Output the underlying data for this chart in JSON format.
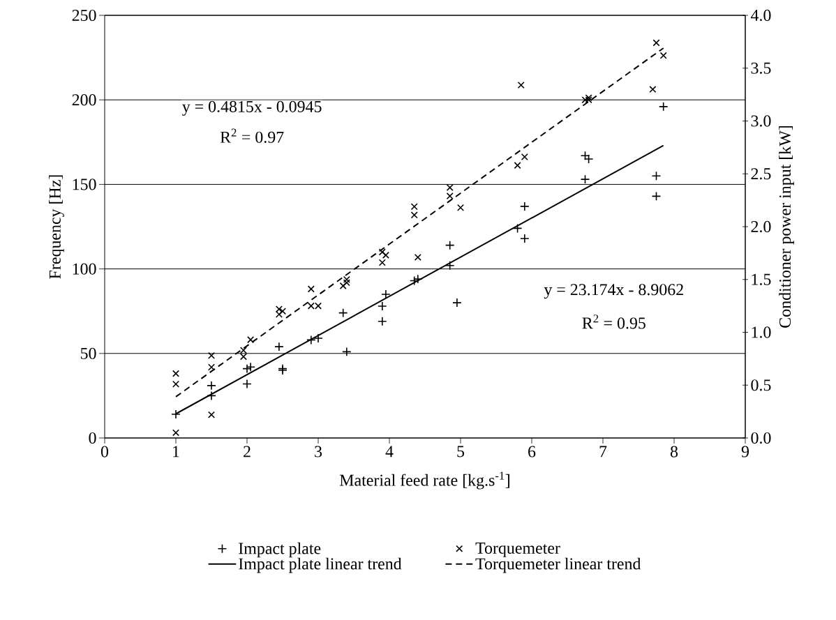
{
  "chart_data": {
    "type": "scatter",
    "xlabel": "Material feed rate [kg.s$^{-1}$]",
    "ylabel": "Frequency [Hz]",
    "y2label": "Conditioner power input [kW]",
    "xlim": [
      0,
      9
    ],
    "xticks": [
      0,
      1,
      2,
      3,
      4,
      5,
      6,
      7,
      8,
      9
    ],
    "ylim": [
      0,
      250
    ],
    "yticks": [
      0,
      50,
      100,
      150,
      200,
      250
    ],
    "y2lim": [
      0,
      4
    ],
    "y2ticks": [
      {
        "value": 0,
        "label": "0.0"
      },
      {
        "value": 0.5,
        "label": "0.5"
      },
      {
        "value": 1,
        "label": "1.0"
      },
      {
        "value": 1.5,
        "label": "1.5"
      },
      {
        "value": 2,
        "label": "2.0"
      },
      {
        "value": 2.5,
        "label": "2.5"
      },
      {
        "value": 3,
        "label": "3.0"
      },
      {
        "value": 3.5,
        "label": "3.5"
      },
      {
        "value": 4,
        "label": "4.0"
      }
    ],
    "grid": "y",
    "legend": "bottom",
    "annotations": [
      "y = 0.4815x - 0.0945",
      "R$^{2}$ = 0.97",
      "y = 23.174x - 8.9062",
      "R$^{2}$ = 0.95"
    ],
    "series": [
      {
        "name": "Impact plate",
        "color": "#000000",
        "marker": "plus",
        "x": [
          1,
          1.5,
          1.5,
          2,
          2,
          2.05,
          2.45,
          2.5,
          2.5,
          2.9,
          3.0,
          3.35,
          3.4,
          3.9,
          3.9,
          3.95,
          4.35,
          4.4,
          4.85,
          4.85,
          4.95,
          5.8,
          5.9,
          5.9,
          6.75,
          6.75,
          6.8,
          7.75,
          7.75,
          7.85
        ],
        "values": [
          14,
          31,
          25,
          32,
          41,
          42,
          54,
          41,
          40,
          58,
          59,
          74,
          51,
          78,
          69,
          85,
          93,
          94,
          114,
          102,
          80,
          124,
          137,
          118,
          153,
          167,
          165,
          155,
          143,
          196
        ]
      },
      {
        "name": "Torquemeter",
        "color": "#000000",
        "marker": "cross",
        "axis": "y2",
        "x": [
          1,
          1,
          1,
          1.5,
          1.5,
          1.5,
          1.95,
          2.05,
          1.95,
          2.45,
          2.5,
          2.45,
          2.9,
          2.9,
          3.0,
          3.35,
          3.4,
          3.4,
          3.9,
          3.9,
          3.95,
          4.35,
          4.35,
          4.4,
          4.85,
          4.85,
          5.0,
          5.8,
          5.85,
          5.9,
          6.75,
          6.8,
          6.8,
          7.7,
          7.75,
          7.85
        ],
        "values": [
          0.61,
          0.51,
          0.05,
          0.78,
          0.67,
          0.22,
          0.83,
          0.93,
          0.77,
          1.22,
          1.2,
          1.17,
          1.41,
          1.25,
          1.25,
          1.44,
          1.5,
          1.47,
          1.76,
          1.66,
          1.73,
          2.19,
          2.11,
          1.71,
          2.37,
          2.29,
          2.18,
          2.58,
          3.34,
          2.66,
          3.2,
          3.22,
          3.2,
          3.3,
          3.74,
          3.62
        ]
      },
      {
        "name": "Impact plate linear trend",
        "type": "line",
        "color": "#000000",
        "marker": "none",
        "line_style": "solid",
        "x": [
          1,
          7.85
        ],
        "values": [
          14.3,
          173
        ]
      },
      {
        "name": "Torquemeter linear trend",
        "type": "line",
        "color": "#000000",
        "marker": "none",
        "line_style": "dashed",
        "axis": "y2",
        "x": [
          1,
          7.85
        ],
        "values": [
          0.39,
          3.69
        ]
      }
    ]
  }
}
